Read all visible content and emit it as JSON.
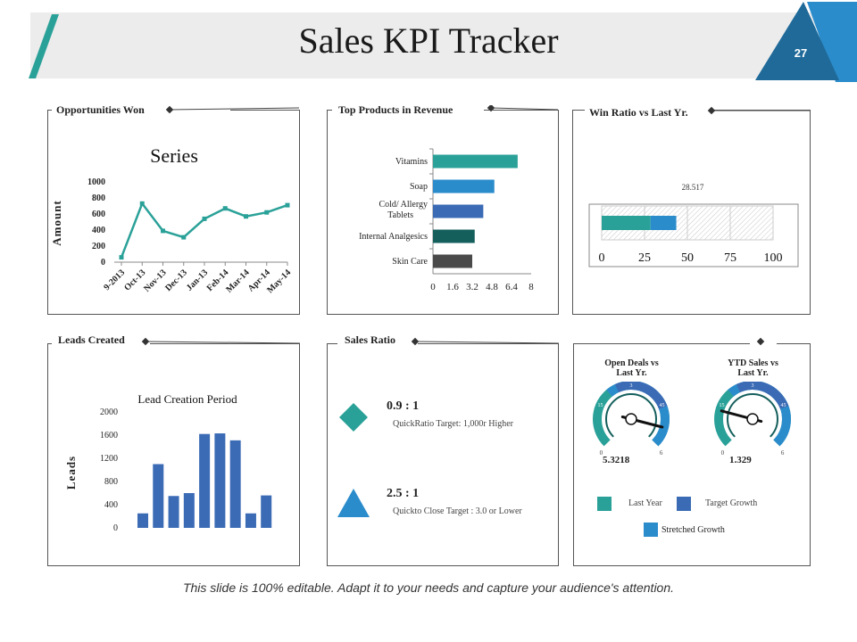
{
  "title": "Sales KPI Tracker",
  "page_number": "27",
  "footer": "This slide is 100% editable. Adapt it to your needs and capture your audience's attention.",
  "colors": {
    "teal": "#2aa198",
    "blue": "#2b8ccc",
    "dark_blue": "#1f6a99",
    "royal": "#3b6bb5",
    "dark_teal": "#145f5c",
    "gray": "#4a4a4a"
  },
  "panels": {
    "opportunities": "Opportunities Won",
    "top_products": "Top Products in Revenue",
    "win_ratio": "Win Ratio vs Last Yr.",
    "leads": "Leads Created",
    "sales_ratio": "Sales Ratio"
  },
  "chart_data": [
    {
      "type": "line",
      "title": "Series",
      "ylabel": "Amount",
      "categories": [
        "9-2013",
        "Oct-13",
        "Nov-13",
        "Dec-13",
        "Jan-13",
        "Feb-14",
        "Mar-14",
        "Apr-14",
        "May-14"
      ],
      "values": [
        60,
        730,
        390,
        310,
        540,
        670,
        570,
        620,
        710
      ],
      "ylim": [
        0,
        1000
      ],
      "yticks": [
        "0",
        "200",
        "400",
        "600",
        "800",
        "1000"
      ]
    },
    {
      "type": "bar",
      "orientation": "horizontal",
      "categories": [
        "Vitamins",
        "Soap",
        "Cold/ Allergy Tablets",
        "Internal Analgesics",
        "Skin Care"
      ],
      "values": [
        6.9,
        5.0,
        4.1,
        3.4,
        3.2
      ],
      "xlim": [
        0,
        8
      ],
      "xticks": [
        "0",
        "1.6",
        "3.2",
        "4.8",
        "6.4",
        "8"
      ]
    },
    {
      "type": "bar",
      "orientation": "horizontal",
      "label": "28.517",
      "segments": [
        {
          "name": "Last Year",
          "value": 28.517
        },
        {
          "name": "Target Growth",
          "value": 15
        }
      ],
      "xlim": [
        0,
        100
      ],
      "xticks": [
        "0",
        "25",
        "50",
        "75",
        "100"
      ]
    },
    {
      "type": "bar",
      "title": "Lead Creation Period",
      "ylabel": "Leads",
      "values": [
        250,
        1100,
        550,
        600,
        1620,
        1630,
        1510,
        250,
        560
      ],
      "ylim": [
        0,
        2000
      ],
      "yticks": [
        "0",
        "400",
        "800",
        "1200",
        "1600",
        "2000"
      ]
    }
  ],
  "sales_ratio": {
    "items": [
      {
        "value": "0.9 : 1",
        "desc": "QuickRatio Target: 1,000r Higher"
      },
      {
        "value": "2.5 : 1",
        "desc": "Quickto Close Target : 3.0 or Lower"
      }
    ]
  },
  "gauges": {
    "items": [
      {
        "title_line1": "Open Deals vs",
        "title_line2": "Last Yr.",
        "value": "5.3218",
        "min": "0",
        "max": "6",
        "ticks": [
          "15",
          "3",
          "45"
        ],
        "needle": 5.3218,
        "range": 6
      },
      {
        "title_line1": "YTD Sales vs",
        "title_line2": "Last Yr.",
        "value": "1.329",
        "min": "0",
        "max": "6",
        "ticks": [
          "15",
          "3",
          "45"
        ],
        "needle": 1.329,
        "range": 6
      }
    ],
    "legend": {
      "last_year": "Last Year",
      "target_growth": "Target Growth",
      "stretched_growth": "Stretched Growth"
    }
  }
}
